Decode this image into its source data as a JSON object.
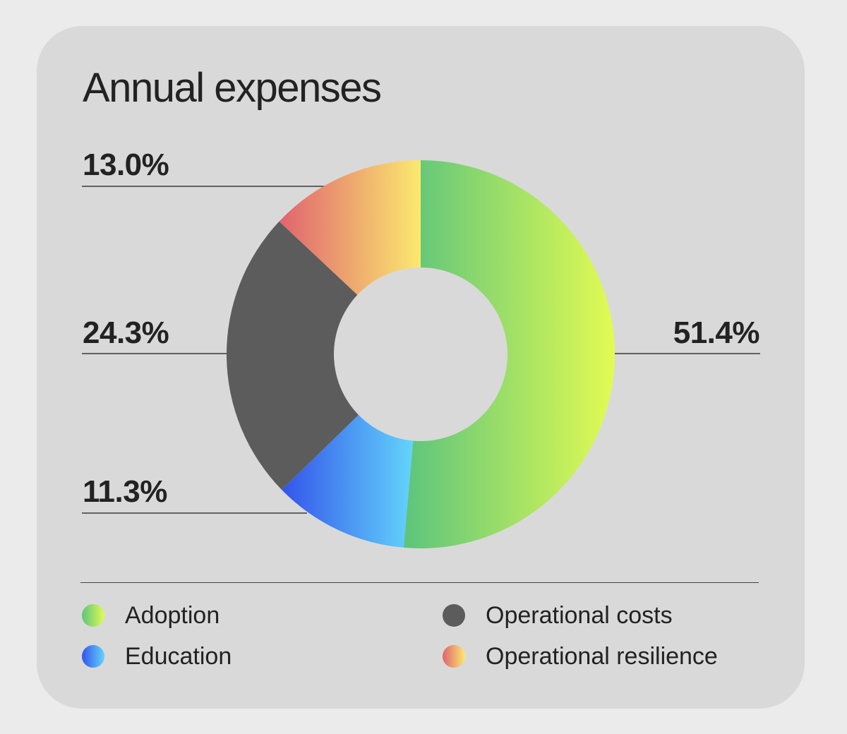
{
  "chart_data": {
    "type": "pie",
    "variant": "donut",
    "title": "Annual expenses",
    "categories": [
      "Adoption",
      "Education",
      "Operational costs",
      "Operational resilience"
    ],
    "values": [
      51.4,
      11.3,
      24.3,
      13.0
    ],
    "value_labels": [
      "51.4%",
      "11.3%",
      "24.3%",
      "13.0%"
    ],
    "colors": {
      "Adoption": [
        "#5cc47d",
        "#e2fb52"
      ],
      "Education": [
        "#3354ea",
        "#63d4fb"
      ],
      "Operational costs": [
        "#5c5c5c",
        "#5c5c5c"
      ],
      "Operational resilience": [
        "#e0636f",
        "#fbe96f"
      ]
    },
    "start_angle_deg": 0,
    "direction": "clockwise",
    "legend": {
      "placement": "bottom",
      "entries": [
        "Adoption",
        "Operational costs",
        "Education",
        "Operational resilience"
      ]
    }
  }
}
